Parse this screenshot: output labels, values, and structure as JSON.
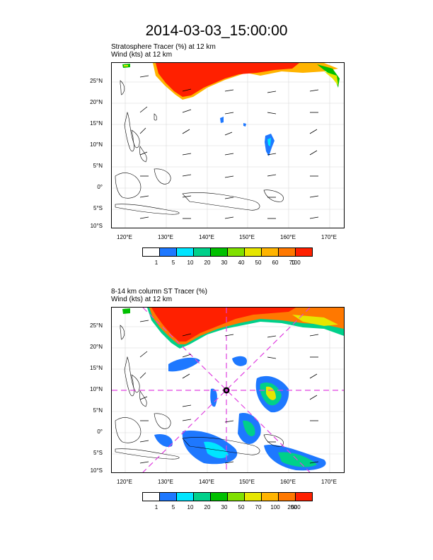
{
  "title": "2014-03-03_15:00:00",
  "panel1": {
    "line1": "Stratosphere Tracer   (%)     at   12 km",
    "line2": "Wind    (kts)      at   12 km",
    "lat_labels": [
      "25°N",
      "20°N",
      "15°N",
      "10°N",
      "5°N",
      "0°",
      "5°S",
      "10°S"
    ],
    "lon_labels": [
      "120°E",
      "130°E",
      "140°E",
      "150°E",
      "160°E",
      "170°E"
    ],
    "colorbar": {
      "labels": [
        "1",
        "5",
        "10",
        "20",
        "30",
        "40",
        "50",
        "60",
        "70",
        "100"
      ],
      "colors": [
        "#ffffff",
        "#1e78ff",
        "#00e5ff",
        "#00d08a",
        "#00c000",
        "#80e000",
        "#e6e600",
        "#ffb400",
        "#ff7800",
        "#ff2000"
      ]
    }
  },
  "panel2": {
    "line1": "8-14 km column ST Tracer    (%)",
    "line2": "Wind    (kts)      at   12 km",
    "lat_labels": [
      "25°N",
      "20°N",
      "15°N",
      "10°N",
      "5°N",
      "0°",
      "5°S",
      "10°S"
    ],
    "lon_labels": [
      "120°E",
      "130°E",
      "140°E",
      "150°E",
      "160°E",
      "170°E"
    ],
    "colorbar": {
      "labels": [
        "1",
        "5",
        "10",
        "20",
        "30",
        "50",
        "70",
        "100",
        "200",
        "500"
      ],
      "colors": [
        "#ffffff",
        "#1e78ff",
        "#00e5ff",
        "#00d08a",
        "#00c000",
        "#80e000",
        "#e6e600",
        "#ffb400",
        "#ff7800",
        "#ff2000"
      ]
    }
  }
}
